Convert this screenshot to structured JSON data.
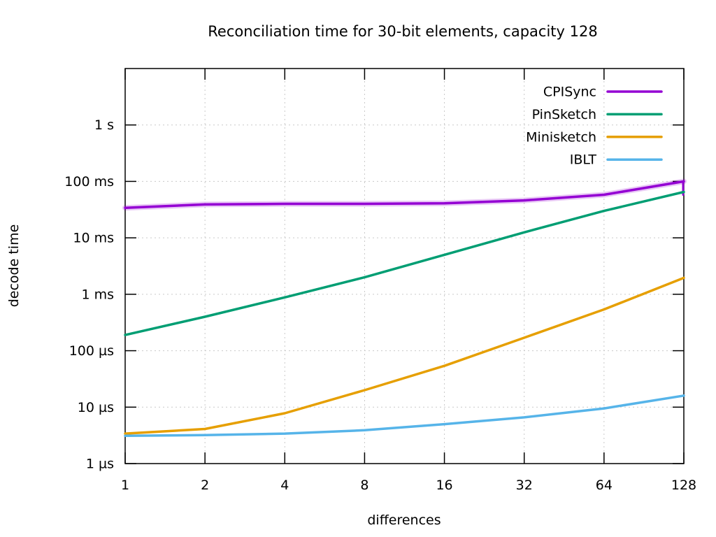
{
  "chart_data": {
    "type": "line",
    "title": "Reconciliation time for 30-bit elements, capacity 128",
    "xlabel": "differences",
    "ylabel": "decode time",
    "x_scale": "log2",
    "y_scale": "log10",
    "xlim": [
      1,
      128
    ],
    "ylim_seconds": [
      1e-06,
      10
    ],
    "grid": true,
    "legend_position": "top-right-inside",
    "x": [
      1,
      2,
      4,
      8,
      16,
      32,
      64,
      128
    ],
    "x_ticks": [
      {
        "v": 1,
        "label": "1"
      },
      {
        "v": 2,
        "label": "2"
      },
      {
        "v": 4,
        "label": "4"
      },
      {
        "v": 8,
        "label": "8"
      },
      {
        "v": 16,
        "label": "16"
      },
      {
        "v": 32,
        "label": "32"
      },
      {
        "v": 64,
        "label": "64"
      },
      {
        "v": 128,
        "label": "128"
      }
    ],
    "y_ticks": [
      {
        "v": 1e-06,
        "label": "1 µs"
      },
      {
        "v": 1e-05,
        "label": "10 µs"
      },
      {
        "v": 0.0001,
        "label": "100 µs"
      },
      {
        "v": 0.001,
        "label": "1 ms"
      },
      {
        "v": 0.01,
        "label": "10 ms"
      },
      {
        "v": 0.1,
        "label": "100 ms"
      },
      {
        "v": 1,
        "label": "1 s"
      }
    ],
    "series": [
      {
        "name": "CPISync",
        "color": "#9400d3",
        "halo": true,
        "values_seconds": [
          0.034,
          0.039,
          0.04,
          0.04,
          0.041,
          0.046,
          0.058,
          0.1
        ],
        "band_close_at_end_seconds": [
          0.058,
          0.1
        ]
      },
      {
        "name": "PinSketch",
        "color": "#009e73",
        "values_seconds": [
          0.00019,
          0.0004,
          0.00088,
          0.002,
          0.005,
          0.0125,
          0.03,
          0.065
        ]
      },
      {
        "name": "Minisketch",
        "color": "#e69f00",
        "values_seconds": [
          3.4e-06,
          4.1e-06,
          7.8e-06,
          2e-05,
          5.4e-05,
          0.00017,
          0.00054,
          0.00195
        ]
      },
      {
        "name": "IBLT",
        "color": "#56b4e9",
        "values_seconds": [
          3.1e-06,
          3.2e-06,
          3.4e-06,
          3.9e-06,
          5e-06,
          6.6e-06,
          9.5e-06,
          1.6e-05
        ]
      }
    ],
    "style_colors": {
      "grid": "#c9c9c9",
      "axis": "#000000",
      "background": "#ffffff",
      "text": "#000000"
    }
  }
}
